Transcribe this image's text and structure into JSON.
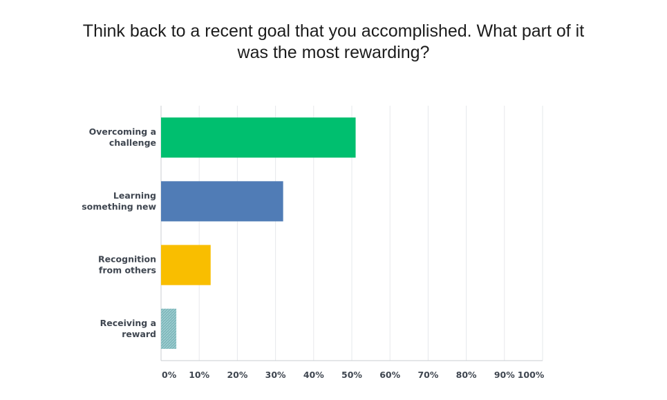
{
  "title_lines": [
    "Think back to a recent goal that you accomplished. What part of it",
    "was the most rewarding?"
  ],
  "chart_data": {
    "type": "bar",
    "orientation": "horizontal",
    "title": "Think back to a recent goal that you accomplished. What part of it was the most rewarding?",
    "categories": [
      [
        "Overcoming a",
        "challenge"
      ],
      [
        "Learning",
        "something new"
      ],
      [
        "Recognition",
        "from others"
      ],
      [
        "Receiving a",
        "reward"
      ]
    ],
    "values": [
      51,
      32,
      13,
      4
    ],
    "colors": [
      "#00bf6f",
      "#507cb6",
      "#f9be00",
      "#6bc8cd"
    ],
    "xlim": [
      0,
      100
    ],
    "ticks": [
      "0%",
      "10%",
      "20%",
      "30%",
      "40%",
      "50%",
      "60%",
      "70%",
      "80%",
      "90%",
      "100%"
    ],
    "grid": true,
    "legend": "none"
  }
}
